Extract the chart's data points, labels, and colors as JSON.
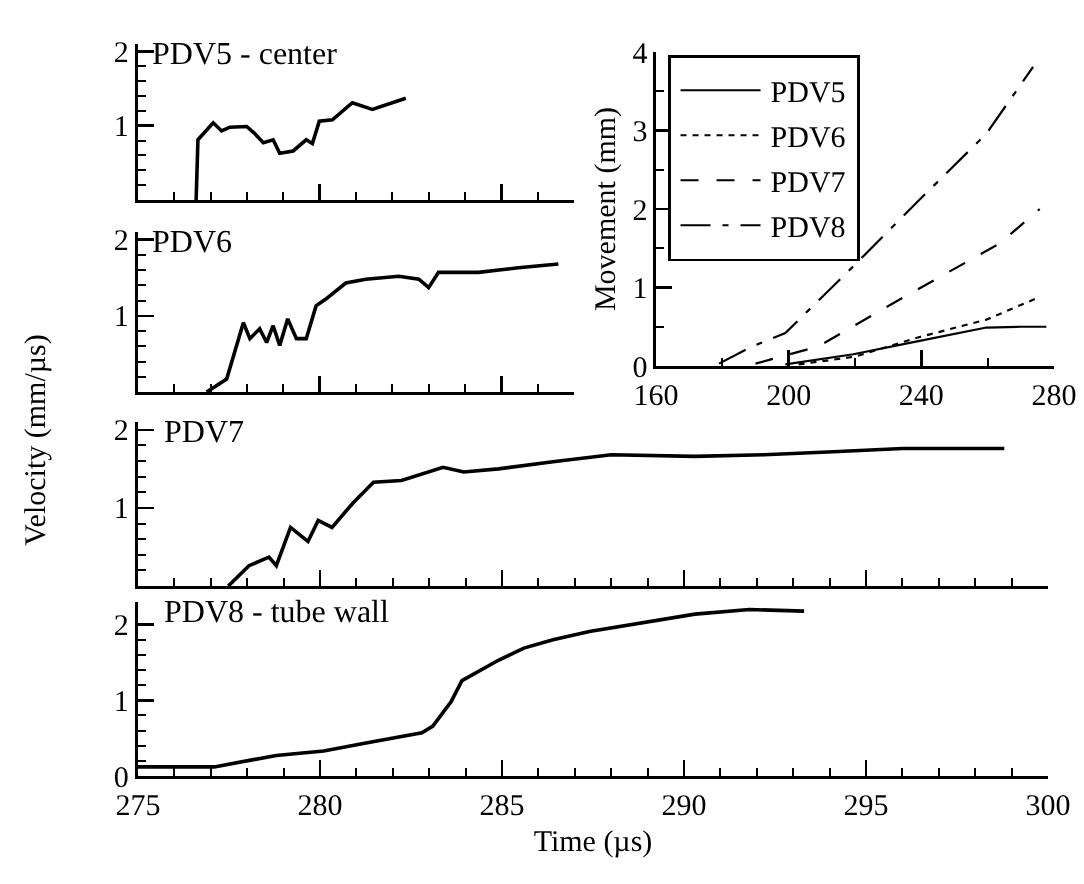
{
  "chart_data": [
    {
      "type": "line",
      "title": "PDV5 - center",
      "xlim": [
        275,
        287
      ],
      "ylim": [
        0,
        2.1
      ],
      "tick_labels": "y",
      "xticks": [
        275,
        {
          "value": 276,
          "label": null
        },
        {
          "value": 277,
          "label": null
        },
        {
          "value": 278,
          "label": null
        },
        {
          "value": 279,
          "label": null
        },
        280,
        {
          "value": 281,
          "label": null
        },
        {
          "value": 282,
          "label": null
        },
        {
          "value": 283,
          "label": null
        },
        {
          "value": 284,
          "label": null
        },
        285,
        {
          "value": 286,
          "label": null
        }
      ],
      "yticks": [
        {
          "value": 0.2,
          "label": null
        },
        {
          "value": 0.4,
          "label": null
        },
        {
          "value": 0.6,
          "label": null
        },
        {
          "value": 0.8,
          "label": null
        },
        1,
        {
          "value": 1.2,
          "label": null
        },
        {
          "value": 1.4,
          "label": null
        },
        {
          "value": 1.6,
          "label": null
        },
        {
          "value": 1.8,
          "label": null
        },
        2
      ],
      "series": [
        {
          "color": "#000000",
          "x": [
            276.6,
            276.65,
            277.07,
            277.3,
            277.53,
            277.99,
            278.2,
            278.45,
            278.72,
            278.9,
            279.27,
            279.63,
            279.8,
            279.99,
            280.35,
            280.9,
            281.45,
            282.37
          ],
          "values": [
            0,
            0.81,
            1.04,
            0.93,
            0.98,
            0.99,
            0.9,
            0.77,
            0.81,
            0.63,
            0.66,
            0.81,
            0.76,
            1.06,
            1.08,
            1.31,
            1.22,
            1.37
          ]
        }
      ]
    },
    {
      "type": "line",
      "title": "PDV6",
      "xlim": [
        275,
        287
      ],
      "ylim": [
        0,
        2.1
      ],
      "tick_labels": "y",
      "xticks": [
        275,
        {
          "value": 276,
          "label": null
        },
        {
          "value": 277,
          "label": null
        },
        {
          "value": 278,
          "label": null
        },
        {
          "value": 279,
          "label": null
        },
        280,
        {
          "value": 281,
          "label": null
        },
        {
          "value": 282,
          "label": null
        },
        {
          "value": 283,
          "label": null
        },
        {
          "value": 284,
          "label": null
        },
        285,
        {
          "value": 286,
          "label": null
        }
      ],
      "yticks": [
        {
          "value": 0.2,
          "label": null
        },
        {
          "value": 0.4,
          "label": null
        },
        {
          "value": 0.6,
          "label": null
        },
        {
          "value": 0.8,
          "label": null
        },
        1,
        {
          "value": 1.2,
          "label": null
        },
        {
          "value": 1.4,
          "label": null
        },
        {
          "value": 1.6,
          "label": null
        },
        {
          "value": 1.8,
          "label": null
        },
        2
      ],
      "series": [
        {
          "color": "#000000",
          "x": [
            276.89,
            277.44,
            277.9,
            278.08,
            278.35,
            278.54,
            278.72,
            278.9,
            279.12,
            279.36,
            279.63,
            279.9,
            280.17,
            280.72,
            281.27,
            282.18,
            282.73,
            283.0,
            283.27,
            284.37,
            285.47,
            286.57
          ],
          "values": [
            0,
            0.17,
            0.91,
            0.7,
            0.83,
            0.65,
            0.87,
            0.61,
            0.96,
            0.7,
            0.7,
            1.13,
            1.22,
            1.43,
            1.48,
            1.52,
            1.48,
            1.37,
            1.57,
            1.57,
            1.63,
            1.68
          ]
        }
      ]
    },
    {
      "type": "line",
      "title": "PDV7",
      "ylabel": "Velocity (mm/µs)",
      "xlim": [
        275,
        300
      ],
      "ylim": [
        0,
        2.1
      ],
      "tick_labels": "y",
      "xticks": [
        275,
        {
          "value": 276,
          "label": null
        },
        {
          "value": 277,
          "label": null
        },
        {
          "value": 278,
          "label": null
        },
        {
          "value": 279,
          "label": null
        },
        280,
        {
          "value": 281,
          "label": null
        },
        {
          "value": 282,
          "label": null
        },
        {
          "value": 283,
          "label": null
        },
        {
          "value": 284,
          "label": null
        },
        285,
        {
          "value": 286,
          "label": null
        },
        {
          "value": 287,
          "label": null
        },
        {
          "value": 288,
          "label": null
        },
        {
          "value": 289,
          "label": null
        },
        290,
        {
          "value": 291,
          "label": null
        },
        {
          "value": 292,
          "label": null
        },
        {
          "value": 293,
          "label": null
        },
        {
          "value": 294,
          "label": null
        },
        295,
        {
          "value": 296,
          "label": null
        },
        {
          "value": 297,
          "label": null
        },
        {
          "value": 298,
          "label": null
        },
        {
          "value": 299,
          "label": null
        },
        300
      ],
      "yticks": [
        {
          "value": 0.2,
          "label": null
        },
        {
          "value": 0.4,
          "label": null
        },
        {
          "value": 0.6,
          "label": null
        },
        {
          "value": 0.8,
          "label": null
        },
        1,
        {
          "value": 1.2,
          "label": null
        },
        {
          "value": 1.4,
          "label": null
        },
        {
          "value": 1.6,
          "label": null
        },
        {
          "value": 1.8,
          "label": null
        },
        2
      ],
      "series": [
        {
          "color": "#000000",
          "x": [
            277.48,
            278.05,
            278.6,
            278.8,
            279.19,
            279.67,
            279.95,
            280.33,
            280.9,
            281.47,
            282.24,
            283.38,
            283.95,
            284.9,
            286.4,
            288.0,
            290.3,
            292.2,
            294.1,
            296.0,
            298.8
          ],
          "values": [
            0,
            0.26,
            0.37,
            0.26,
            0.75,
            0.57,
            0.84,
            0.75,
            1.06,
            1.33,
            1.35,
            1.52,
            1.46,
            1.5,
            1.59,
            1.68,
            1.66,
            1.68,
            1.72,
            1.76,
            1.76
          ]
        }
      ]
    },
    {
      "type": "line",
      "title": "PDV8 - tube wall",
      "xlabel": "Time (µs)",
      "xlim": [
        275,
        300
      ],
      "ylim": [
        0,
        2.3
      ],
      "xticks": [
        275,
        {
          "value": 276,
          "label": null
        },
        {
          "value": 277,
          "label": null
        },
        {
          "value": 278,
          "label": null
        },
        {
          "value": 279,
          "label": null
        },
        280,
        {
          "value": 281,
          "label": null
        },
        {
          "value": 282,
          "label": null
        },
        {
          "value": 283,
          "label": null
        },
        {
          "value": 284,
          "label": null
        },
        285,
        {
          "value": 286,
          "label": null
        },
        {
          "value": 287,
          "label": null
        },
        {
          "value": 288,
          "label": null
        },
        {
          "value": 289,
          "label": null
        },
        290,
        {
          "value": 291,
          "label": null
        },
        {
          "value": 292,
          "label": null
        },
        {
          "value": 293,
          "label": null
        },
        {
          "value": 294,
          "label": null
        },
        295,
        {
          "value": 296,
          "label": null
        },
        {
          "value": 297,
          "label": null
        },
        {
          "value": 298,
          "label": null
        },
        {
          "value": 299,
          "label": null
        },
        300
      ],
      "yticks": [
        0,
        {
          "value": 0.2,
          "label": null
        },
        {
          "value": 0.4,
          "label": null
        },
        {
          "value": 0.6,
          "label": null
        },
        {
          "value": 0.8,
          "label": null
        },
        1,
        {
          "value": 1.2,
          "label": null
        },
        {
          "value": 1.4,
          "label": null
        },
        {
          "value": 1.6,
          "label": null
        },
        {
          "value": 1.8,
          "label": null
        },
        2
      ],
      "series": [
        {
          "color": "#000000",
          "x": [
            275,
            277.1,
            278.1,
            278.8,
            280.1,
            281.3,
            282.8,
            283.1,
            283.6,
            283.9,
            284.9,
            285.6,
            286.4,
            287.4,
            290.3,
            291.8,
            293.3
          ],
          "values": [
            0.12,
            0.12,
            0.21,
            0.27,
            0.33,
            0.44,
            0.57,
            0.66,
            0.98,
            1.26,
            1.53,
            1.69,
            1.8,
            1.91,
            2.14,
            2.2,
            2.18
          ]
        }
      ]
    },
    {
      "type": "line",
      "ylabel": "Movement (mm)",
      "xlim": [
        160,
        280
      ],
      "ylim": [
        0,
        4
      ],
      "legend": "top left",
      "xticks": [
        160,
        {
          "value": 180,
          "label": null
        },
        200,
        {
          "value": 220,
          "label": null
        },
        240,
        {
          "value": 260,
          "label": null
        },
        280
      ],
      "yticks": [
        0,
        {
          "value": 0.5,
          "label": null
        },
        1,
        {
          "value": 1.5,
          "label": null
        },
        2,
        {
          "value": 2.5,
          "label": null
        },
        3,
        {
          "value": 3.5,
          "label": null
        },
        4
      ],
      "series": [
        {
          "name": "PDV5",
          "color": "#000000",
          "line_style": "solid",
          "x": [
            199,
            219.5,
            239.5,
            259.6,
            270,
            277.7
          ],
          "values": [
            0.02,
            0.15,
            0.32,
            0.49,
            0.5,
            0.5
          ]
        },
        {
          "name": "PDV6",
          "color": "#000000",
          "line_style": "dotted",
          "x": [
            203,
            220,
            239.5,
            259.6,
            275.7
          ],
          "values": [
            0.02,
            0.12,
            0.37,
            0.59,
            0.88
          ]
        },
        {
          "name": "PDV7",
          "color": "#000000",
          "line_style": "dashed",
          "x": [
            190,
            209,
            231.5,
            247.5,
            263.6,
            275.7
          ],
          "values": [
            0.03,
            0.25,
            0.8,
            1.18,
            1.56,
            2.0
          ]
        },
        {
          "name": "PDV8",
          "color": "#000000",
          "line_style": "dashdot",
          "x": [
            179,
            189,
            199,
            219.5,
            239.5,
            259.6,
            273.7
          ],
          "values": [
            0.03,
            0.25,
            0.42,
            1.27,
            2.12,
            2.96,
            3.81
          ]
        }
      ]
    }
  ]
}
